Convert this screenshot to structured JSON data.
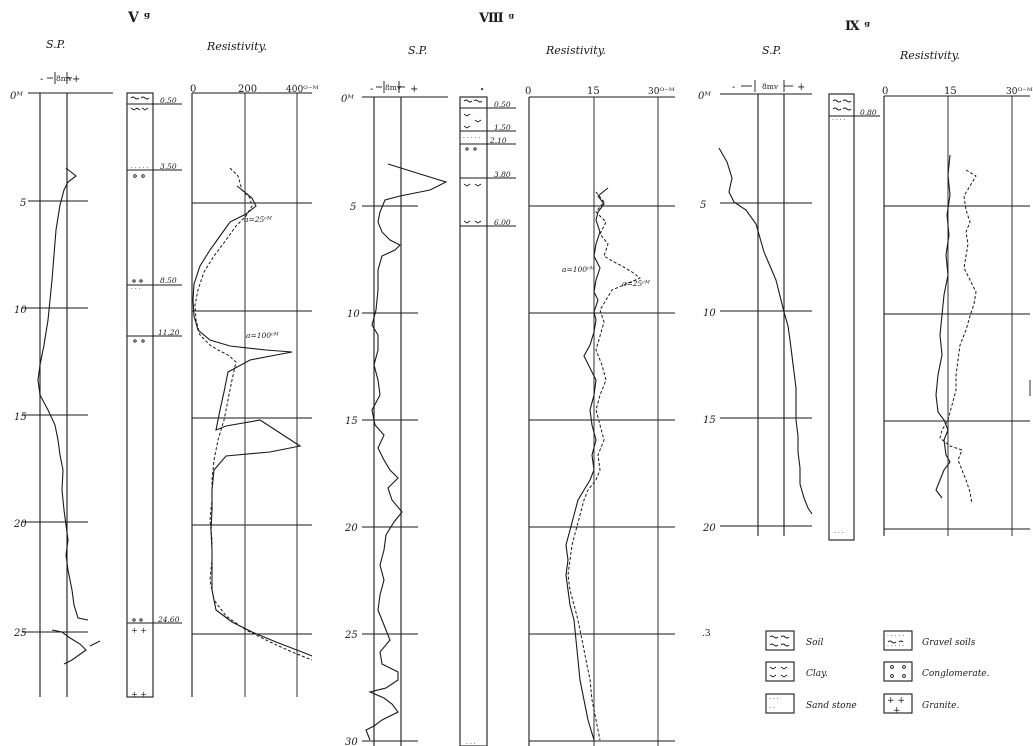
{
  "wells": [
    {
      "id": "V",
      "title": "V ᵍ",
      "sp_label": "S.P.",
      "sp_scale": "8mv",
      "sp_minus": "-",
      "sp_plus": "+",
      "resistivity_label": "Resistivity.",
      "depth_labels": [
        "0ᴹ",
        "5",
        "10",
        "15",
        "20",
        "25"
      ],
      "res_ticks": [
        "0",
        "200",
        "400ᴼ⁻ᴹ"
      ],
      "layer_depths": [
        "0.50",
        "3.50",
        "8.50",
        "11.20",
        "24.60"
      ],
      "annotations": [
        "a=25ᶜᴹ",
        "a=100ᶜᴹ"
      ]
    },
    {
      "id": "VIII",
      "title": "Ⅷ ᵍ",
      "sp_label": "S.P.",
      "sp_scale": "8mv",
      "sp_minus": "-",
      "sp_plus": "+",
      "resistivity_label": "Resistivity.",
      "depth_labels": [
        "0ᴹ",
        "5",
        "10",
        "15",
        "20",
        "25",
        "30"
      ],
      "res_ticks": [
        "0",
        "15",
        "30ᴼ⁻ᴹ"
      ],
      "layer_depths": [
        "0.50",
        "1.50",
        "2.10",
        "3.80",
        "6.00"
      ],
      "annotations": [
        "a=100ᶜᴹ",
        "a=25ᶜᴹ"
      ]
    },
    {
      "id": "IX",
      "title": "Ⅸ ᵍ",
      "sp_label": "S.P.",
      "sp_scale": "8mv",
      "sp_minus": "-",
      "sp_plus": "+",
      "resistivity_label": "Resistivity.",
      "depth_labels": [
        "0ᴹ",
        "5",
        "10",
        "15",
        "20"
      ],
      "res_ticks": [
        "0",
        "15",
        "30ᴼ⁻ᴹ"
      ],
      "layer_depths": [
        "0.80"
      ],
      "annotations": []
    }
  ],
  "legend": [
    {
      "symbol": "soil",
      "label": "Soil"
    },
    {
      "symbol": "gravel",
      "label": "Gravel soils"
    },
    {
      "symbol": "clay",
      "label": "Clay."
    },
    {
      "symbol": "conglomerate",
      "label": "Conglomerate."
    },
    {
      "symbol": "sandstone",
      "label": "Sand stone"
    },
    {
      "symbol": "granite",
      "label": "Granite."
    }
  ],
  "page_marks": [
    ".3"
  ]
}
